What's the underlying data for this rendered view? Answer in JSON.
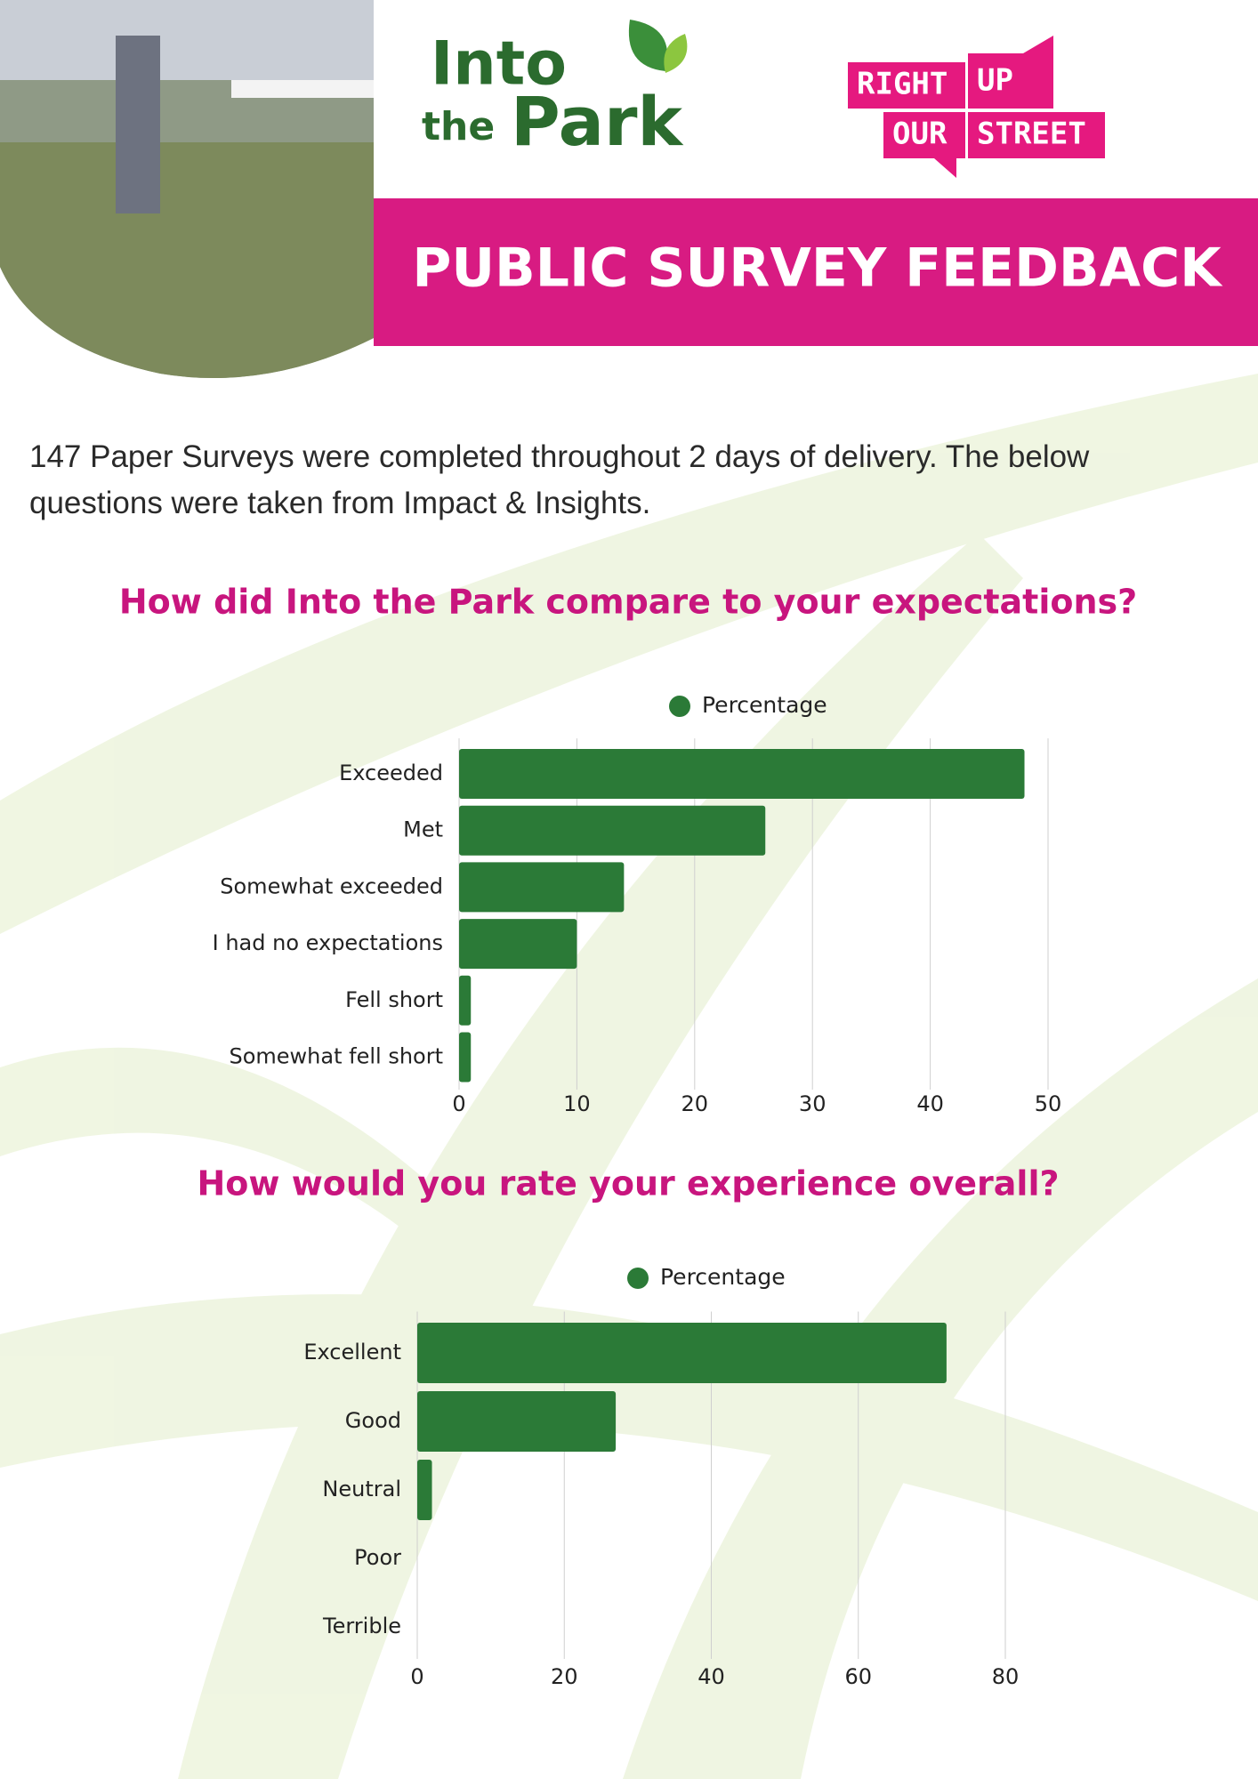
{
  "header": {
    "logo_words": [
      "Into",
      "the",
      "Park"
    ],
    "partner_words": [
      "RIGHT",
      "UP",
      "OUR",
      "STREET"
    ],
    "banner": "PUBLIC SURVEY FEEDBACK"
  },
  "intro": "147 Paper Surveys were completed throughout 2 days of delivery. The below questions were taken from Impact & Insights.",
  "chart_data": [
    {
      "type": "hbar",
      "title": "How did Into the Park compare to your expectations?",
      "categories": [
        "Exceeded",
        "Met",
        "Somewhat exceeded",
        "I had no expectations",
        "Fell short",
        "Somewhat fell short"
      ],
      "series": [
        {
          "name": "Percentage",
          "color": "#2b7a37",
          "values": [
            48,
            26,
            14,
            10,
            1,
            1
          ]
        }
      ],
      "xlim": [
        0,
        50
      ],
      "xticks": [
        0,
        10,
        20,
        30,
        40,
        50
      ],
      "grid": true,
      "legend": "top"
    },
    {
      "type": "hbar",
      "title": "How would you rate your experience overall?",
      "categories": [
        "Excellent",
        "Good",
        "Neutral",
        "Poor",
        "Terrible"
      ],
      "series": [
        {
          "name": "Percentage",
          "color": "#2b7a37",
          "values": [
            72,
            27,
            2,
            0,
            0
          ]
        }
      ],
      "xlim": [
        0,
        80
      ],
      "xticks": [
        0,
        20,
        40,
        60,
        80
      ],
      "grid": true,
      "legend": "top"
    }
  ]
}
